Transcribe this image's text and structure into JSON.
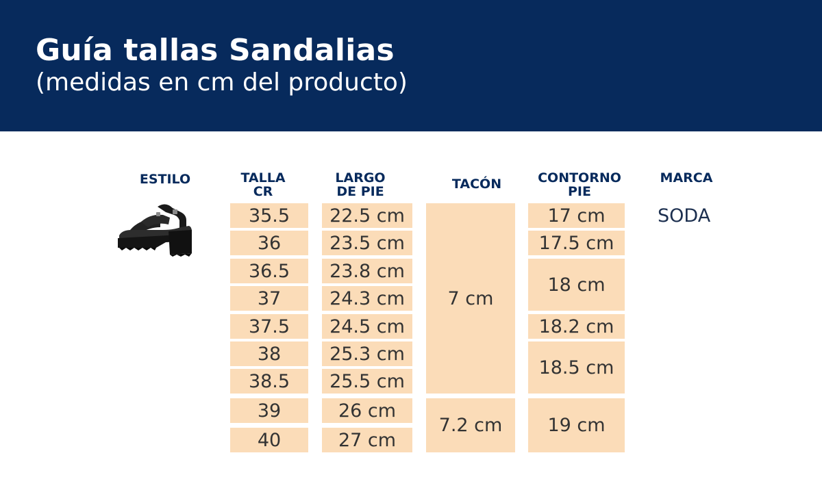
{
  "header": {
    "title": "Guía tallas Sandalias",
    "subtitle": "(medidas en cm del producto)"
  },
  "columns": {
    "estilo": [
      "ESTILO"
    ],
    "talla": [
      "TALLA",
      "CR"
    ],
    "largo": [
      "LARGO",
      "DE PIE"
    ],
    "tacon": [
      "TACÓN"
    ],
    "contorno": [
      "CONTORNO",
      "PIE"
    ],
    "marca": [
      "MARCA"
    ]
  },
  "rows": {
    "talla": [
      "35.5",
      "36",
      "36.5",
      "37",
      "37.5",
      "38",
      "38.5",
      "39",
      "40"
    ],
    "largo": [
      "22.5 cm",
      "23.5 cm",
      "23.8 cm",
      "24.3 cm",
      "24.5 cm",
      "25.3 cm",
      "25.5 cm",
      "26 cm",
      "27 cm"
    ]
  },
  "tacon": [
    "7 cm",
    "7.2 cm"
  ],
  "contorno": [
    "17 cm",
    "17.5 cm",
    "18 cm",
    "18.2 cm",
    "18.5 cm",
    "19 cm"
  ],
  "marca": "SODA",
  "style_image": "black-platform-sandal-icon",
  "colors": {
    "header_bg": "#072a5c",
    "cell_bg": "#fbdcb8",
    "heading_text": "#072a5c"
  }
}
